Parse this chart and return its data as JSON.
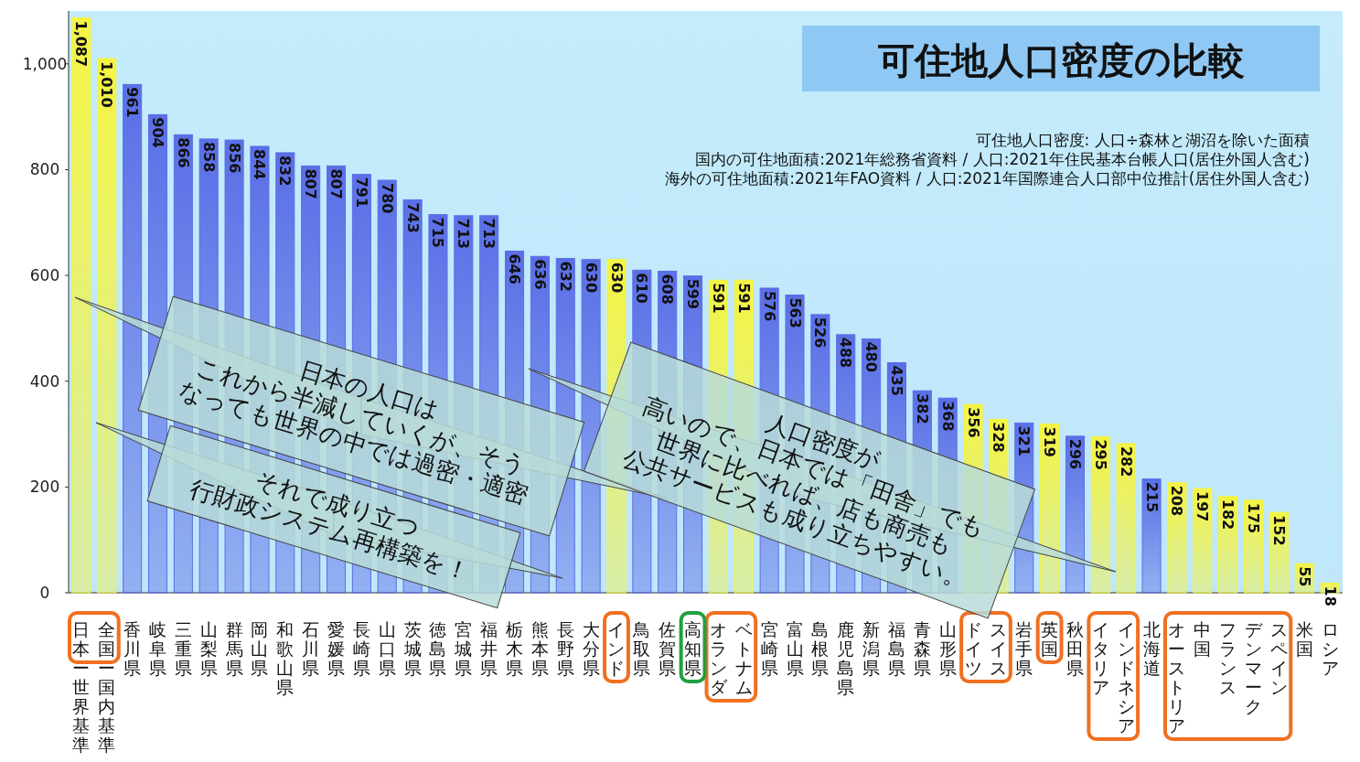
{
  "chart_data": {
    "type": "bar",
    "title": "可住地人口密度の比較",
    "categories": [
      "日本ー世界基準",
      "全国ー国内基準",
      "香川県",
      "岐阜県",
      "三重県",
      "山梨県",
      "群馬県",
      "岡山県",
      "和歌山県",
      "石川県",
      "愛媛県",
      "長崎県",
      "山口県",
      "茨城県",
      "徳島県",
      "宮城県",
      "福井県",
      "栃木県",
      "熊本県",
      "長野県",
      "大分県",
      "インド",
      "鳥取県",
      "佐賀県",
      "高知県",
      "オランダ",
      "ベトナム",
      "宮崎県",
      "富山県",
      "島根県",
      "鹿児島県",
      "新潟県",
      "福島県",
      "青森県",
      "山形県",
      "ドイツ",
      "スイス",
      "岩手県",
      "英国",
      "秋田県",
      "イタリア",
      "インドネシア",
      "北海道",
      "オーストリア",
      "中国",
      "フランス",
      "デンマーク",
      "スペイン",
      "米国",
      "ロシア"
    ],
    "values": [
      1087,
      1010,
      961,
      904,
      866,
      858,
      856,
      844,
      832,
      807,
      807,
      791,
      780,
      743,
      715,
      713,
      713,
      646,
      636,
      632,
      630,
      630,
      610,
      608,
      599,
      591,
      591,
      576,
      563,
      526,
      488,
      480,
      435,
      382,
      368,
      356,
      328,
      321,
      319,
      296,
      295,
      282,
      215,
      208,
      197,
      182,
      175,
      152,
      55,
      18
    ],
    "colors": [
      "#f4f442",
      "#f4f442",
      "#5a6ee6",
      "#5a6ee6",
      "#5a6ee6",
      "#5a6ee6",
      "#5a6ee6",
      "#5a6ee6",
      "#5a6ee6",
      "#5a6ee6",
      "#5a6ee6",
      "#5a6ee6",
      "#5a6ee6",
      "#5a6ee6",
      "#5a6ee6",
      "#5a6ee6",
      "#5a6ee6",
      "#5a6ee6",
      "#5a6ee6",
      "#5a6ee6",
      "#5a6ee6",
      "#f4f442",
      "#5a6ee6",
      "#5a6ee6",
      "#5a6ee6",
      "#f4f442",
      "#f4f442",
      "#5a6ee6",
      "#5a6ee6",
      "#5a6ee6",
      "#5a6ee6",
      "#5a6ee6",
      "#5a6ee6",
      "#5a6ee6",
      "#5a6ee6",
      "#f4f442",
      "#f4f442",
      "#5a6ee6",
      "#f4f442",
      "#5a6ee6",
      "#f4f442",
      "#f4f442",
      "#5a6ee6",
      "#f4f442",
      "#f4f442",
      "#f4f442",
      "#f4f442",
      "#f4f442",
      "#f4f442",
      "#f4f442"
    ],
    "ylim": [
      0,
      1100
    ],
    "yticks": [
      0,
      200,
      400,
      600,
      800,
      {
        "value": 1000,
        "label": "1,000"
      }
    ],
    "value_labels": [
      "1,087",
      "1,010",
      "961",
      "904",
      "866",
      "858",
      "856",
      "844",
      "832",
      "807",
      "807",
      "791",
      "780",
      "743",
      "715",
      "713",
      "713",
      "646",
      "636",
      "632",
      "630",
      "630",
      "610",
      "608",
      "599",
      "591",
      "591",
      "576",
      "563",
      "526",
      "488",
      "480",
      "435",
      "382",
      "368",
      "356",
      "328",
      "321",
      "319",
      "296",
      "295",
      "282",
      "215",
      "208",
      "197",
      "182",
      "175",
      "152",
      "55",
      "18"
    ],
    "grid": false,
    "annotations": [
      "可住地人口密度: 人口÷森林と湖沼を除いた面積",
      "国内の可住地面積:2021年総務省資料 / 人口:2021年住民基本台帳人口(居住外国人含む)",
      "海外の可住地面積:2021年FAO資料 / 人口:2021年国際連合人口部中位推計(居住外国人含む)",
      "日本の人口は\nこれから半減していくが、そう\nなっても世界の中では過密・適密",
      "それで成り立つ\n行財政システム再構築を！",
      "人口密度が\n高いので、日本では「田舎」でも\n世界に比べれば、店も商売も\n公共サービスも成り立ちやすい。"
    ]
  }
}
